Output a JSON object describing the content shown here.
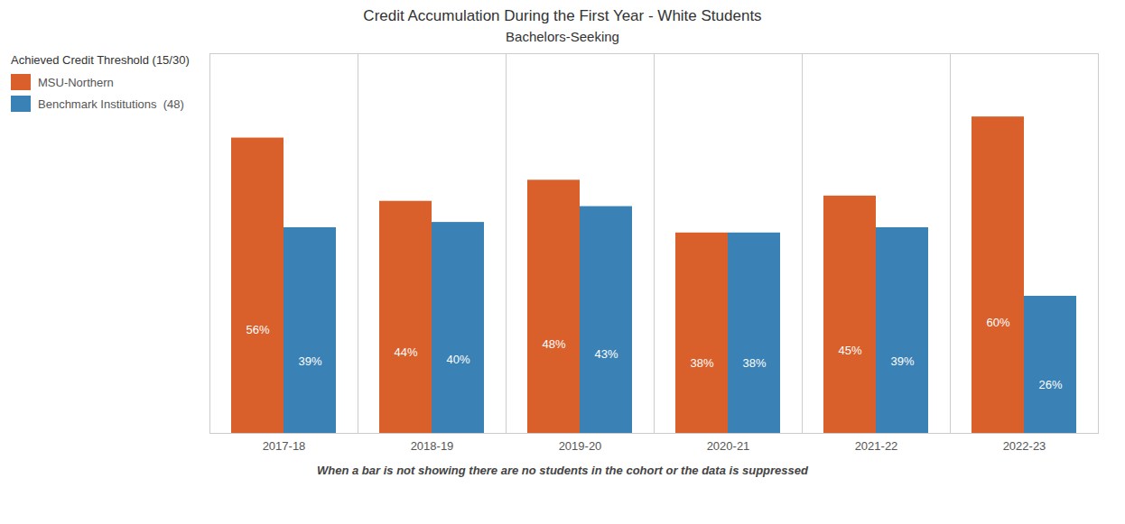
{
  "chart_data": {
    "type": "bar",
    "title": "Credit Accumulation During the First Year - White Students",
    "subtitle": "Bachelors-Seeking",
    "footer": "When a bar is not showing there are no students in the cohort or the data is suppressed",
    "legend_title": "Achieved Credit Threshold (15/30)",
    "legend": "upper left",
    "categories": [
      "2017-18",
      "2018-19",
      "2019-20",
      "2020-21",
      "2021-22",
      "2022-23"
    ],
    "series": [
      {
        "name": "MSU-Northern",
        "color": "#D95F2B",
        "values": [
          56,
          44,
          48,
          38,
          45,
          60
        ],
        "value_labels": [
          "56%",
          "44%",
          "48%",
          "38%",
          "45%",
          "60%"
        ]
      },
      {
        "name": "Benchmark Institutions  (48)",
        "color": "#3A82B5",
        "values": [
          39,
          40,
          43,
          38,
          39,
          26
        ],
        "value_labels": [
          "39%",
          "40%",
          "43%",
          "38%",
          "39%",
          "26%"
        ]
      }
    ],
    "ylim": [
      0,
      72
    ],
    "tick_labels": "x",
    "data_labels": true
  }
}
